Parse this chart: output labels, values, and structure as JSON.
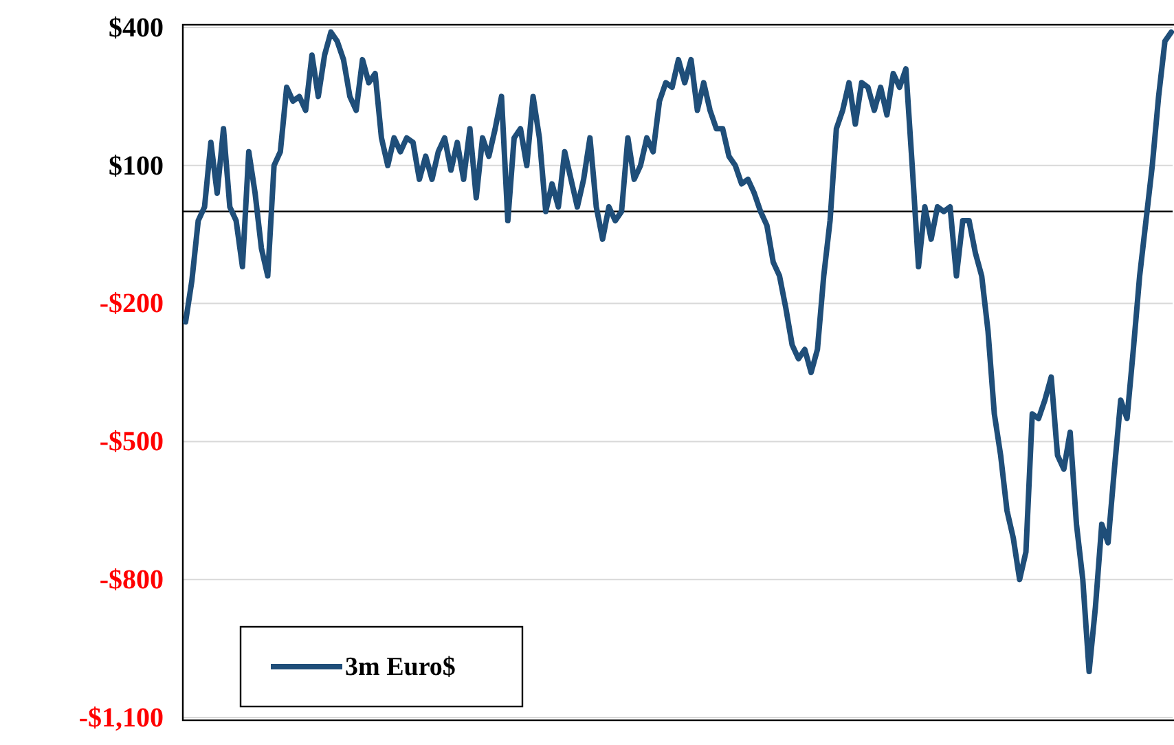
{
  "chart_data": {
    "type": "line",
    "categories": [
      null,
      null,
      null,
      null,
      null,
      null,
      null,
      null,
      null,
      null,
      null,
      null,
      null,
      null,
      null,
      null,
      null,
      null,
      null,
      null,
      null,
      null,
      null,
      null,
      null,
      null,
      null,
      null,
      null,
      null,
      null,
      null,
      null,
      null,
      null,
      null,
      null,
      null,
      null,
      null,
      null,
      null,
      null,
      null,
      null,
      null,
      null,
      null,
      null,
      null,
      null,
      null,
      null,
      null,
      null,
      null,
      null,
      null,
      null,
      null,
      null,
      null,
      null,
      null,
      null,
      null,
      null,
      null,
      null,
      null,
      null,
      null,
      null,
      null,
      null,
      null,
      null,
      null,
      null,
      null,
      null,
      null,
      null,
      null,
      null,
      null,
      null,
      null,
      null,
      null,
      null,
      null,
      null,
      null,
      null,
      null,
      null,
      null,
      null,
      null,
      null,
      null,
      null,
      null,
      null,
      null,
      null,
      null,
      null,
      null,
      null,
      null,
      null,
      null,
      null,
      null,
      null,
      null,
      null,
      null,
      null,
      null,
      null,
      null,
      null,
      null,
      null,
      null,
      null,
      null,
      null,
      null,
      null,
      null,
      null,
      null,
      null,
      null,
      null,
      null,
      null,
      null,
      null,
      null,
      null,
      null,
      null,
      null,
      null,
      null,
      null,
      null,
      null,
      null,
      null,
      null,
      null
    ],
    "series": [
      {
        "name": "3m Euro$",
        "color": "#1f4e79",
        "values": [
          -240,
          -150,
          -20,
          10,
          150,
          40,
          180,
          10,
          -20,
          -120,
          130,
          40,
          -80,
          -140,
          100,
          130,
          270,
          240,
          250,
          220,
          340,
          250,
          340,
          390,
          370,
          330,
          250,
          220,
          330,
          280,
          300,
          160,
          100,
          160,
          130,
          160,
          150,
          70,
          120,
          70,
          130,
          160,
          90,
          150,
          70,
          180,
          30,
          160,
          120,
          180,
          250,
          -20,
          160,
          180,
          100,
          250,
          160,
          0,
          60,
          10,
          130,
          70,
          10,
          70,
          160,
          10,
          -60,
          10,
          -20,
          0,
          160,
          70,
          100,
          160,
          130,
          240,
          280,
          270,
          330,
          280,
          330,
          220,
          280,
          220,
          180,
          180,
          120,
          100,
          60,
          70,
          40,
          0,
          -30,
          -110,
          -140,
          -210,
          -290,
          -320,
          -300,
          -350,
          -300,
          -140,
          -20,
          180,
          220,
          280,
          190,
          280,
          270,
          220,
          270,
          210,
          300,
          270,
          310,
          100,
          -120,
          10,
          -60,
          10,
          0,
          10,
          -140,
          -20,
          -20,
          -90,
          -140,
          -260,
          -440,
          -530,
          -650,
          -710,
          -800,
          -740,
          -440,
          -450,
          -410,
          -360,
          -530,
          -560,
          -480,
          -680,
          -800,
          -1000,
          -860,
          -680,
          -720,
          -560,
          -410,
          -450,
          -300,
          -140,
          -20,
          100,
          250,
          370,
          390
        ]
      }
    ],
    "ylim": [
      -1100,
      400
    ],
    "yticks": [
      {
        "value": 400,
        "label": "$400"
      },
      {
        "value": 100,
        "label": "$100"
      },
      {
        "value": -200,
        "label": "-$200"
      },
      {
        "value": -500,
        "label": "-$500"
      },
      {
        "value": -800,
        "label": "-$800"
      },
      {
        "value": -1100,
        "label": "-$1,100"
      }
    ],
    "grid": "y",
    "legend": "bottom left",
    "ref_lines": [
      {
        "axis": "y",
        "value": 0,
        "color": "#000000"
      }
    ]
  }
}
